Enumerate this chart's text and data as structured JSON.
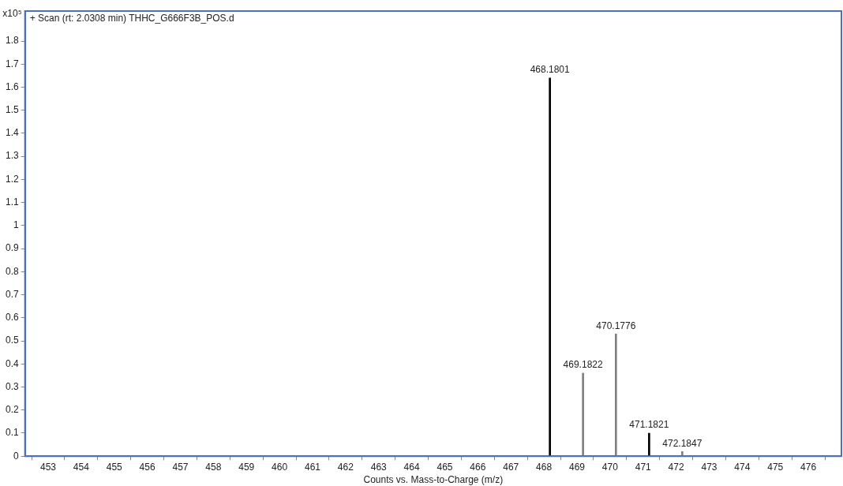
{
  "chart_data": {
    "type": "bar",
    "title": "+ Scan (rt: 2.0308 min) THHC_G666F3B_POS.d",
    "xlabel": "Counts vs. Mass-to-Charge (m/z)",
    "ylabel": "x10⁵",
    "x": [
      468.1801,
      469.1822,
      470.1776,
      471.1821,
      472.1847
    ],
    "values": [
      1.64,
      0.36,
      0.53,
      0.1,
      0.02
    ],
    "colors": [
      "#000000",
      "#808080",
      "#808080",
      "#000000",
      "#808080"
    ],
    "annotations": [
      {
        "text": "468.1801",
        "x": 468.1801,
        "y": 1.64
      },
      {
        "text": "469.1822",
        "x": 469.1822,
        "y": 0.36
      },
      {
        "text": "470.1776",
        "x": 470.1776,
        "y": 0.53
      },
      {
        "text": "471.1821",
        "x": 471.1821,
        "y": 0.1
      },
      {
        "text": "472.1847",
        "x": 472.1847,
        "y": 0.02
      }
    ],
    "xlim": [
      452.3,
      477
    ],
    "xticks": [
      453,
      454,
      455,
      456,
      457,
      458,
      459,
      460,
      461,
      462,
      463,
      464,
      465,
      466,
      467,
      468,
      469,
      470,
      471,
      472,
      473,
      474,
      475,
      476
    ],
    "ylim": [
      0,
      1.93
    ],
    "yticks": [
      0,
      0.1,
      0.2,
      0.3,
      0.4,
      0.5,
      0.6,
      0.7,
      0.8,
      0.9,
      1,
      1.1,
      1.2,
      1.3,
      1.4,
      1.5,
      1.6,
      1.7,
      1.8
    ],
    "grid": false,
    "legend": false
  }
}
